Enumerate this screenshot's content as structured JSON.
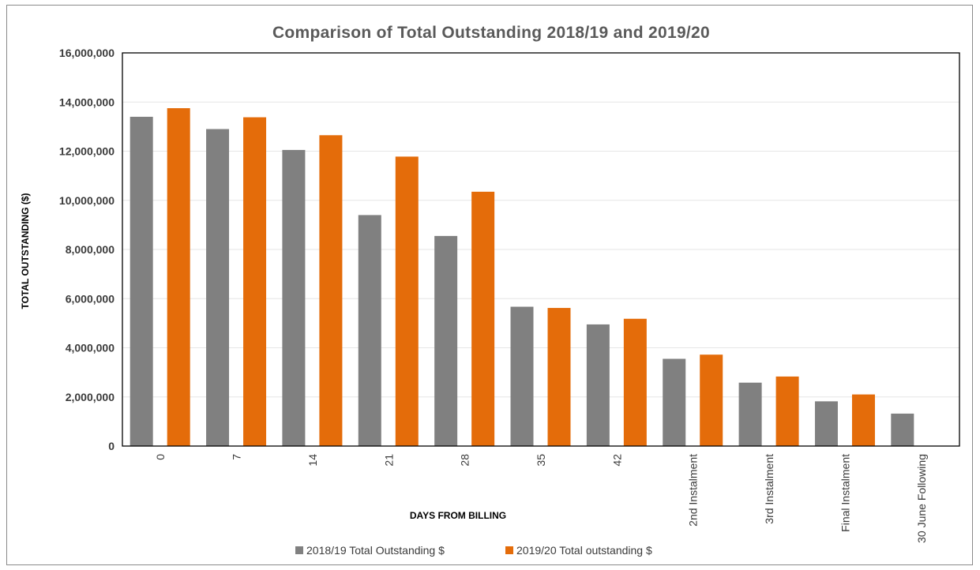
{
  "chart_data": {
    "type": "bar",
    "title": "Comparison of Total Outstanding 2018/19 and 2019/20",
    "xlabel": "DAYS FROM BILLING",
    "ylabel": "TOTAL OUTSTANDING ($)",
    "categories": [
      "0",
      "7",
      "14",
      "21",
      "28",
      "35",
      "42",
      "2nd Instalment",
      "3rd Instalment",
      "Final Instalment",
      "30 June Following"
    ],
    "series": [
      {
        "name": "2018/19 Total Outstanding $",
        "color": "#808080",
        "values": [
          13400000,
          12900000,
          12050000,
          9400000,
          8550000,
          5670000,
          4950000,
          3550000,
          2580000,
          1820000,
          1320000
        ]
      },
      {
        "name": "2019/20 Total outstanding $",
        "color": "#e46c0a",
        "values": [
          13750000,
          13380000,
          12650000,
          11780000,
          10350000,
          5620000,
          5180000,
          3720000,
          2830000,
          2100000,
          null
        ]
      }
    ],
    "ylim": [
      0,
      16000000
    ],
    "yticks": [
      "0",
      "2,000,000",
      "4,000,000",
      "6,000,000",
      "8,000,000",
      "10,000,000",
      "12,000,000",
      "14,000,000",
      "16,000,000"
    ],
    "grid": true,
    "legend": "bottom"
  }
}
